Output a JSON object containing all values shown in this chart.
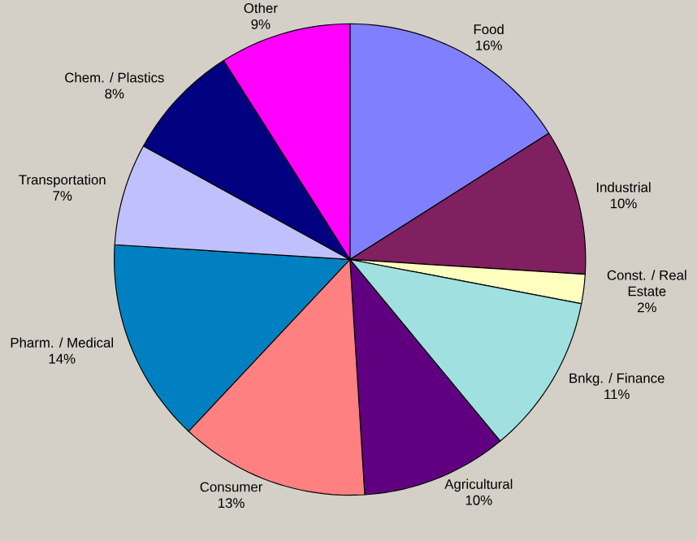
{
  "chart_data": {
    "type": "pie",
    "categories": [
      "Food",
      "Industrial",
      "Const. / Real Estate",
      "Bnkg. / Finance",
      "Agricultural",
      "Consumer",
      "Pharm. / Medical",
      "Transportation",
      "Chem. / Plastics",
      "Other"
    ],
    "values": [
      16,
      10,
      2,
      11,
      10,
      13,
      14,
      7,
      8,
      9
    ],
    "value_labels": [
      "16%",
      "10%",
      "2%",
      "11%",
      "10%",
      "13%",
      "14%",
      "7%",
      "8%",
      "9%"
    ],
    "colors": [
      "#8080ff",
      "#802060",
      "#ffffc0",
      "#a0e0e0",
      "#600080",
      "#ff8080",
      "#0080c0",
      "#c0c0ff",
      "#000080",
      "#ff00ff"
    ]
  }
}
